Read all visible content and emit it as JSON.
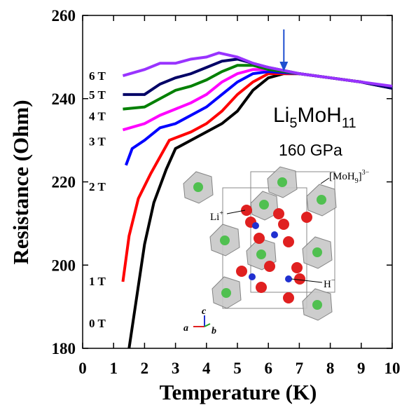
{
  "chart_data": {
    "type": "line",
    "xlabel": "Temperature (K)",
    "ylabel": "Resistance (Ohm)",
    "xlim": [
      0,
      10
    ],
    "xticks": [
      0,
      1,
      2,
      3,
      4,
      5,
      6,
      7,
      8,
      9,
      10
    ],
    "ylim": [
      180,
      260
    ],
    "yticks": [
      180,
      200,
      220,
      240,
      260
    ],
    "series": [
      {
        "name": "0 T",
        "color": "#000000",
        "x": [
          1.5,
          1.8,
          2.0,
          2.3,
          2.7,
          3.0,
          3.5,
          4.0,
          4.5,
          5.0,
          5.5,
          6.0,
          6.5,
          7,
          8,
          9,
          10
        ],
        "values": [
          180,
          195,
          205,
          215,
          223,
          228,
          230,
          232,
          234,
          237,
          242,
          245,
          246,
          246,
          245,
          244,
          242.5
        ]
      },
      {
        "name": "1 T",
        "color": "#ff0000",
        "x": [
          1.3,
          1.5,
          1.8,
          2.2,
          2.5,
          2.8,
          3.5,
          4,
          4.5,
          5,
          5.5,
          6,
          7,
          8,
          9,
          10
        ],
        "values": [
          196,
          207,
          216,
          222,
          226,
          230,
          232,
          234,
          237,
          241,
          244,
          246,
          246,
          245,
          244,
          242.5
        ]
      },
      {
        "name": "2 T",
        "color": "#0000ff",
        "x": [
          1.4,
          1.6,
          2.0,
          2.5,
          3,
          3.5,
          4,
          4.5,
          5,
          5.5,
          6,
          7,
          8,
          9,
          10
        ],
        "values": [
          224,
          228,
          230,
          233,
          234,
          236,
          238,
          241,
          244,
          246,
          246.5,
          246,
          245,
          244,
          242.5
        ]
      },
      {
        "name": "3 T",
        "color": "#ff00ff",
        "x": [
          1.3,
          2,
          2.5,
          3,
          3.5,
          4,
          4.5,
          5,
          5.5,
          6,
          7,
          8,
          9,
          10
        ],
        "values": [
          232.5,
          234,
          236,
          237.5,
          239,
          241,
          244,
          246,
          247,
          247,
          246,
          245,
          244,
          242.5
        ]
      },
      {
        "name": "4 T",
        "color": "#008000",
        "x": [
          1.3,
          2,
          2.5,
          3,
          3.5,
          4,
          4.5,
          5,
          5.5,
          6,
          7,
          8,
          9,
          10
        ],
        "values": [
          237.5,
          238,
          240,
          242,
          243,
          244.5,
          246.5,
          248,
          248,
          247,
          246,
          245,
          244,
          242.5
        ]
      },
      {
        "name": "5 T",
        "color": "#000066",
        "x": [
          1.3,
          2,
          2.5,
          3,
          3.5,
          4,
          4.5,
          5,
          5.5,
          6,
          7,
          8,
          9,
          10
        ],
        "values": [
          241,
          241,
          243.5,
          245,
          246,
          247.5,
          249,
          249.5,
          248.5,
          247.5,
          246,
          245,
          244,
          242.5
        ]
      },
      {
        "name": "6 T",
        "color": "#9933ff",
        "x": [
          1.3,
          2,
          2.5,
          3,
          3.5,
          4,
          4.4,
          5,
          5.5,
          6,
          7,
          8,
          9,
          10
        ],
        "values": [
          245.5,
          247,
          248.5,
          248.5,
          249.5,
          250,
          251,
          250,
          248.5,
          247.5,
          246,
          245,
          244,
          243
        ]
      }
    ],
    "arrow_x": 6.5,
    "compound": [
      "Li",
      "5",
      "MoH",
      "11"
    ],
    "pressure": "160 GPa",
    "inset_labels": {
      "cluster": [
        "[MoH",
        "9",
        "]",
        "3−"
      ],
      "li": [
        "Li",
        "+"
      ],
      "h": [
        "H",
        "−"
      ],
      "axes": [
        "a",
        "b",
        "c"
      ]
    }
  }
}
